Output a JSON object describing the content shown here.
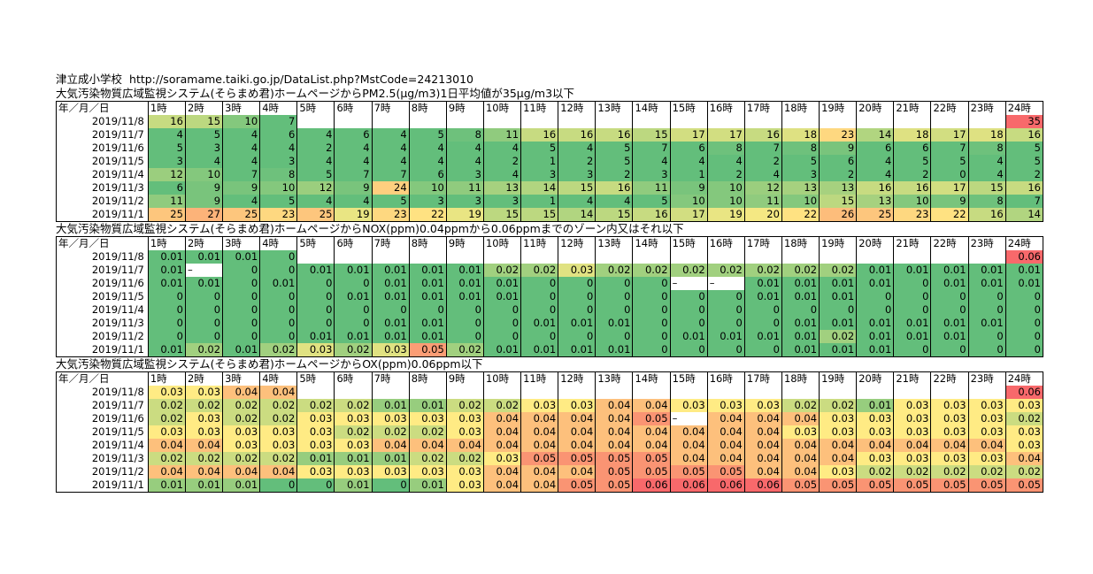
{
  "header": {
    "school": "津立成小学校",
    "url": "http://soramame.taiki.go.jp/DataList.php?MstCode=24213010"
  },
  "hour_headers": [
    "年／月／日",
    "1時",
    "2時",
    "3時",
    "4時",
    "5時",
    "6時",
    "7時",
    "8時",
    "9時",
    "10時",
    "11時",
    "12時",
    "13時",
    "14時",
    "15時",
    "16時",
    "17時",
    "18時",
    "19時",
    "20時",
    "21時",
    "22時",
    "23時",
    "24時"
  ],
  "tables": [
    {
      "key": "pm25",
      "title": "大気汚染物質広域監視システム(そらまめ君)ホームページからPM2.5(μg/m3)1日平均値が35μg/m3以下",
      "scale": [
        35,
        7
      ],
      "rows": [
        {
          "date": "2019/11/8",
          "values": [
            "16",
            "15",
            "10",
            "7",
            "",
            "",
            "",
            "",
            "",
            "",
            "",
            "",
            "",
            "",
            "",
            "",
            "",
            "",
            "",
            "",
            "",
            "",
            "",
            "35"
          ]
        },
        {
          "date": "2019/11/7",
          "values": [
            "4",
            "5",
            "4",
            "6",
            "4",
            "6",
            "4",
            "5",
            "8",
            "11",
            "16",
            "16",
            "16",
            "15",
            "17",
            "17",
            "16",
            "18",
            "23",
            "14",
            "18",
            "17",
            "18",
            "16"
          ]
        },
        {
          "date": "2019/11/6",
          "values": [
            "5",
            "3",
            "4",
            "4",
            "2",
            "4",
            "4",
            "4",
            "4",
            "4",
            "5",
            "4",
            "5",
            "7",
            "6",
            "8",
            "7",
            "8",
            "9",
            "6",
            "6",
            "7",
            "8",
            "5"
          ]
        },
        {
          "date": "2019/11/5",
          "values": [
            "3",
            "4",
            "4",
            "3",
            "4",
            "4",
            "4",
            "4",
            "4",
            "2",
            "1",
            "2",
            "5",
            "4",
            "4",
            "4",
            "2",
            "5",
            "6",
            "4",
            "5",
            "5",
            "4",
            "5"
          ]
        },
        {
          "date": "2019/11/4",
          "values": [
            "12",
            "10",
            "7",
            "8",
            "5",
            "7",
            "7",
            "6",
            "3",
            "4",
            "3",
            "3",
            "2",
            "3",
            "1",
            "2",
            "4",
            "3",
            "2",
            "4",
            "2",
            "0",
            "4",
            "2"
          ]
        },
        {
          "date": "2019/11/3",
          "values": [
            "6",
            "9",
            "9",
            "10",
            "12",
            "9",
            "24",
            "10",
            "11",
            "13",
            "14",
            "15",
            "16",
            "11",
            "9",
            "10",
            "12",
            "13",
            "13",
            "16",
            "16",
            "17",
            "15",
            "16"
          ]
        },
        {
          "date": "2019/11/2",
          "values": [
            "11",
            "9",
            "4",
            "5",
            "4",
            "4",
            "5",
            "3",
            "3",
            "3",
            "1",
            "4",
            "4",
            "5",
            "10",
            "10",
            "11",
            "10",
            "15",
            "13",
            "10",
            "9",
            "8",
            "7"
          ]
        },
        {
          "date": "2019/11/1",
          "values": [
            "25",
            "27",
            "25",
            "23",
            "25",
            "19",
            "23",
            "22",
            "19",
            "15",
            "15",
            "14",
            "15",
            "16",
            "17",
            "19",
            "20",
            "22",
            "26",
            "25",
            "23",
            "22",
            "16",
            "14"
          ]
        }
      ]
    },
    {
      "key": "nox",
      "title": "大気汚染物質広域監視システム(そらまめ君)ホームページからNOX(ppm)0.04ppmから0.06ppmまでのゾーン内又はそれ以下",
      "scale": [
        0.06,
        0.01
      ],
      "rows": [
        {
          "date": "2019/11/8",
          "values": [
            "0.01",
            "0.01",
            "0.01",
            "0",
            "",
            "",
            "",
            "",
            "",
            "",
            "",
            "",
            "",
            "",
            "",
            "",
            "",
            "",
            "",
            "",
            "",
            "",
            "",
            "0.06"
          ]
        },
        {
          "date": "2019/11/7",
          "values": [
            "0.01",
            "–",
            "0",
            "0",
            "0.01",
            "0.01",
            "0.01",
            "0.01",
            "0.01",
            "0.02",
            "0.02",
            "0.03",
            "0.02",
            "0.02",
            "0.02",
            "0.02",
            "0.02",
            "0.02",
            "0.02",
            "0.01",
            "0.01",
            "0.01",
            "0.01",
            "0.01"
          ]
        },
        {
          "date": "2019/11/6",
          "values": [
            "0.01",
            "0.01",
            "0",
            "0.01",
            "0",
            "0",
            "0.01",
            "0.01",
            "0.01",
            "0.01",
            "0",
            "0",
            "0",
            "0",
            "–",
            "–",
            "0.01",
            "0.01",
            "0.01",
            "0.01",
            "0",
            "0.01",
            "0.01",
            "0.01"
          ]
        },
        {
          "date": "2019/11/5",
          "values": [
            "0",
            "0",
            "0",
            "0",
            "0",
            "0.01",
            "0.01",
            "0.01",
            "0.01",
            "0.01",
            "0",
            "0",
            "0",
            "0",
            "0",
            "0",
            "0.01",
            "0.01",
            "0.01",
            "0",
            "0",
            "0",
            "0",
            "0"
          ]
        },
        {
          "date": "2019/11/4",
          "values": [
            "0",
            "0",
            "0",
            "0",
            "0",
            "0",
            "0",
            "0",
            "0",
            "0",
            "0",
            "0",
            "0",
            "0",
            "0",
            "0",
            "0",
            "0",
            "0",
            "0",
            "0",
            "0",
            "0",
            "0"
          ]
        },
        {
          "date": "2019/11/3",
          "values": [
            "0",
            "0",
            "0",
            "0",
            "0",
            "0",
            "0.01",
            "0.01",
            "0",
            "0",
            "0.01",
            "0.01",
            "0.01",
            "0",
            "0",
            "0",
            "0",
            "0.01",
            "0.01",
            "0.01",
            "0.01",
            "0.01",
            "0.01",
            "0"
          ]
        },
        {
          "date": "2019/11/2",
          "values": [
            "0",
            "0",
            "0",
            "0",
            "0.01",
            "0.01",
            "0.01",
            "0.01",
            "0",
            "0",
            "0",
            "0",
            "0",
            "0",
            "0.01",
            "0.01",
            "0.01",
            "0.01",
            "0.02",
            "0.01",
            "0.01",
            "0.01",
            "0",
            "0"
          ]
        },
        {
          "date": "2019/11/1",
          "values": [
            "0.01",
            "0.02",
            "0.01",
            "0.02",
            "0.03",
            "0.02",
            "0.03",
            "0.05",
            "0.02",
            "0.01",
            "0.01",
            "0.01",
            "0.01",
            "0",
            "0",
            "0",
            "0",
            "0.01",
            "0.01",
            "0.01",
            "0",
            "0",
            "0",
            "0"
          ]
        }
      ]
    },
    {
      "key": "ox",
      "title": "大気汚染物質広域監視システム(そらまめ君)ホームページからOX(ppm)0.06ppm以下",
      "scale": [
        0.06,
        0
      ],
      "rows": [
        {
          "date": "2019/11/8",
          "values": [
            "0.03",
            "0.03",
            "0.04",
            "0.04",
            "",
            "",
            "",
            "",
            "",
            "",
            "",
            "",
            "",
            "",
            "",
            "",
            "",
            "",
            "",
            "",
            "",
            "",
            "",
            "0.06"
          ]
        },
        {
          "date": "2019/11/7",
          "values": [
            "0.02",
            "0.02",
            "0.02",
            "0.02",
            "0.02",
            "0.02",
            "0.01",
            "0.01",
            "0.02",
            "0.02",
            "0.03",
            "0.03",
            "0.04",
            "0.04",
            "0.03",
            "0.03",
            "0.03",
            "0.02",
            "0.02",
            "0.01",
            "0.03",
            "0.03",
            "0.03",
            "0.03"
          ]
        },
        {
          "date": "2019/11/6",
          "values": [
            "0.02",
            "0.03",
            "0.02",
            "0.02",
            "0.03",
            "0.03",
            "0.03",
            "0.03",
            "0.03",
            "0.04",
            "0.04",
            "0.04",
            "0.04",
            "0.05",
            "–",
            "0.04",
            "0.04",
            "0.04",
            "0.03",
            "0.03",
            "0.03",
            "0.03",
            "0.03",
            "0.02"
          ]
        },
        {
          "date": "2019/11/5",
          "values": [
            "0.03",
            "0.03",
            "0.03",
            "0.03",
            "0.03",
            "0.02",
            "0.02",
            "0.02",
            "0.03",
            "0.04",
            "0.04",
            "0.04",
            "0.04",
            "0.04",
            "0.04",
            "0.04",
            "0.04",
            "0.03",
            "0.03",
            "0.03",
            "0.03",
            "0.03",
            "0.03",
            "0.03"
          ]
        },
        {
          "date": "2019/11/4",
          "values": [
            "0.04",
            "0.04",
            "0.03",
            "0.03",
            "0.03",
            "0.03",
            "0.04",
            "0.04",
            "0.04",
            "0.04",
            "0.04",
            "0.04",
            "0.04",
            "0.04",
            "0.04",
            "0.04",
            "0.04",
            "0.04",
            "0.04",
            "0.04",
            "0.04",
            "0.04",
            "0.04",
            "0.03"
          ]
        },
        {
          "date": "2019/11/3",
          "values": [
            "0.02",
            "0.02",
            "0.02",
            "0.02",
            "0.01",
            "0.01",
            "0.01",
            "0.02",
            "0.02",
            "0.03",
            "0.05",
            "0.05",
            "0.05",
            "0.05",
            "0.04",
            "0.04",
            "0.04",
            "0.04",
            "0.04",
            "0.03",
            "0.03",
            "0.03",
            "0.03",
            "0.04"
          ]
        },
        {
          "date": "2019/11/2",
          "values": [
            "0.04",
            "0.04",
            "0.04",
            "0.04",
            "0.03",
            "0.03",
            "0.03",
            "0.03",
            "0.03",
            "0.04",
            "0.04",
            "0.04",
            "0.05",
            "0.05",
            "0.05",
            "0.05",
            "0.04",
            "0.04",
            "0.03",
            "0.02",
            "0.02",
            "0.02",
            "0.02",
            "0.02"
          ]
        },
        {
          "date": "2019/11/1",
          "values": [
            "0.01",
            "0.01",
            "0.01",
            "0",
            "0",
            "0.01",
            "0",
            "0.01",
            "0.03",
            "0.04",
            "0.04",
            "0.05",
            "0.05",
            "0.06",
            "0.06",
            "0.06",
            "0.06",
            "0.05",
            "0.05",
            "0.05",
            "0.05",
            "0.05",
            "0.05",
            "0.05"
          ]
        }
      ]
    }
  ]
}
